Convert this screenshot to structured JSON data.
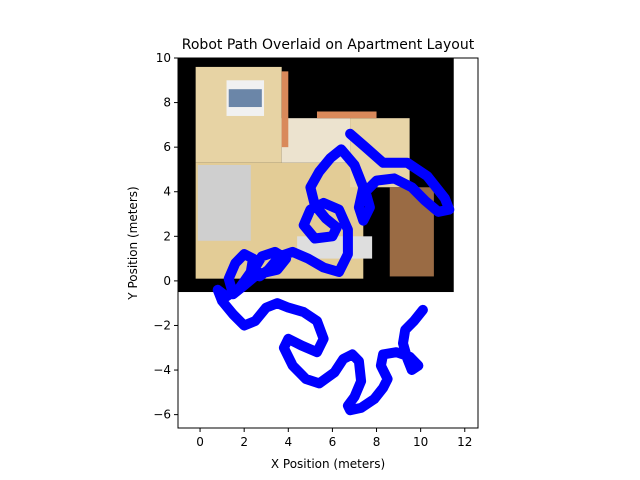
{
  "chart_data": {
    "type": "line",
    "title": "Robot Path Overlaid on Apartment Layout",
    "xlabel": "X Position (meters)",
    "ylabel": "Y Position (meters)",
    "xlim": [
      -1,
      12.6
    ],
    "ylim": [
      -6.6,
      10
    ],
    "xticks": [
      0,
      2,
      4,
      6,
      8,
      10,
      12
    ],
    "yticks": [
      -6,
      -4,
      -2,
      0,
      2,
      4,
      6,
      8,
      10
    ],
    "grid": false,
    "legend": "none",
    "background_image": {
      "description_kind": "apartment floor plan (top-down render)",
      "extent": [
        -1,
        11.5,
        -0.5,
        10
      ]
    },
    "series": [
      {
        "color": "#0000ff",
        "x": [
          6.8,
          7.5,
          8.3,
          9.4,
          10.3,
          11.1,
          11.3,
          10.8,
          10.2,
          9.6,
          8.8,
          8.0,
          7.5,
          7.7,
          7.4,
          7.2,
          7.4,
          7.0,
          6.4,
          5.9,
          5.4,
          5.0,
          5.2,
          5.7,
          6.2,
          6.0,
          5.2,
          4.7,
          5.0,
          5.6,
          6.3,
          6.7,
          6.7,
          6.3,
          5.6,
          4.9,
          4.2,
          3.6,
          3.1,
          2.7,
          2.5,
          2.8,
          3.4,
          3.9,
          3.5,
          2.6,
          2.0,
          1.5,
          1.3,
          1.6,
          2.0,
          2.4,
          2.3,
          1.8,
          1.2,
          0.8,
          1.0,
          1.5,
          2.0,
          2.5,
          3.0,
          3.5,
          4.0,
          4.7,
          5.3,
          5.6,
          5.3,
          4.6,
          4.0,
          3.8,
          4.2,
          4.8,
          5.4,
          6.1,
          6.5,
          6.9,
          7.2,
          7.3,
          7.0,
          6.7,
          6.8,
          7.3,
          7.9,
          8.3,
          8.5,
          8.2,
          8.3,
          8.9,
          9.5,
          9.9,
          9.6,
          9.4,
          9.2,
          9.3,
          9.7,
          10.1
        ],
        "y": [
          6.6,
          6.0,
          5.3,
          5.3,
          4.7,
          3.7,
          3.2,
          3.1,
          3.6,
          4.2,
          4.6,
          4.5,
          4.0,
          3.3,
          2.7,
          3.3,
          4.2,
          5.2,
          5.9,
          5.5,
          4.9,
          4.2,
          3.4,
          2.8,
          2.4,
          2.0,
          1.9,
          2.5,
          3.2,
          3.5,
          3.2,
          2.3,
          1.2,
          0.4,
          0.6,
          1.0,
          1.3,
          1.1,
          0.5,
          0.2,
          0.6,
          1.1,
          1.3,
          1.0,
          0.5,
          0.3,
          -0.2,
          -0.6,
          0.1,
          0.8,
          1.2,
          1.0,
          0.4,
          -0.3,
          -0.7,
          -0.4,
          -0.9,
          -1.5,
          -2.0,
          -1.8,
          -1.2,
          -1.0,
          -1.2,
          -1.4,
          -1.8,
          -2.6,
          -3.2,
          -2.9,
          -2.6,
          -3.0,
          -3.8,
          -4.4,
          -4.6,
          -4.1,
          -3.5,
          -3.3,
          -3.6,
          -4.5,
          -5.2,
          -5.6,
          -5.8,
          -5.7,
          -5.3,
          -4.8,
          -4.4,
          -3.8,
          -3.3,
          -3.2,
          -3.4,
          -3.8,
          -4.0,
          -3.5,
          -2.8,
          -2.2,
          -1.8,
          -1.3
        ]
      }
    ]
  }
}
